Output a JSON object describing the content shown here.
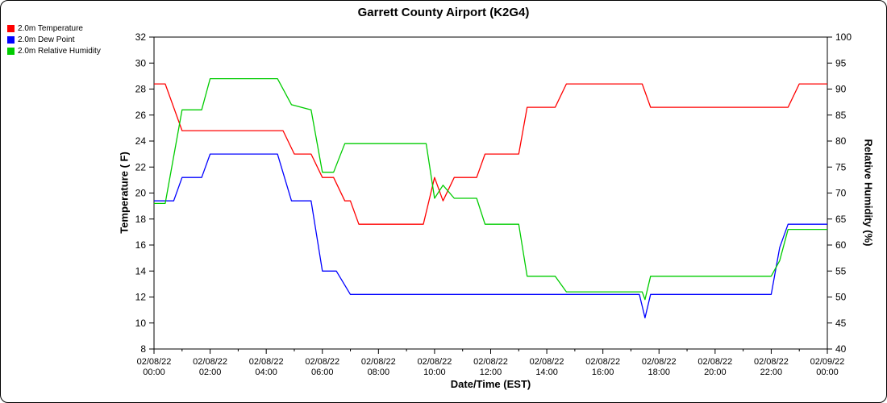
{
  "chart_data": {
    "type": "line",
    "title": "Garrett County Airport (K2G4)",
    "xlabel": "Date/Time (EST)",
    "ylabel_left": "Temperature ( F)",
    "ylabel_right": "Relative Humidity (%)",
    "xlim": [
      0,
      24
    ],
    "x_unit": "hours since 02/08/22 00:00 EST",
    "ylim_left": [
      8,
      32
    ],
    "ytick_step_left": 2,
    "ylim_right": [
      40,
      100
    ],
    "ytick_step_right": 5,
    "grid": false,
    "legend_position": "top-left",
    "axis_color": "#000000",
    "x_ticks": [
      {
        "pos": 0,
        "date": "02/08/22",
        "time": "00:00"
      },
      {
        "pos": 2,
        "date": "02/08/22",
        "time": "02:00"
      },
      {
        "pos": 4,
        "date": "02/08/22",
        "time": "04:00"
      },
      {
        "pos": 6,
        "date": "02/08/22",
        "time": "06:00"
      },
      {
        "pos": 8,
        "date": "02/08/22",
        "time": "08:00"
      },
      {
        "pos": 10,
        "date": "02/08/22",
        "time": "10:00"
      },
      {
        "pos": 12,
        "date": "02/08/22",
        "time": "12:00"
      },
      {
        "pos": 14,
        "date": "02/08/22",
        "time": "14:00"
      },
      {
        "pos": 16,
        "date": "02/08/22",
        "time": "16:00"
      },
      {
        "pos": 18,
        "date": "02/08/22",
        "time": "18:00"
      },
      {
        "pos": 20,
        "date": "02/08/22",
        "time": "20:00"
      },
      {
        "pos": 22,
        "date": "02/08/22",
        "time": "22:00"
      },
      {
        "pos": 24,
        "date": "02/09/22",
        "time": "00:00"
      }
    ],
    "series": [
      {
        "name": "2.0m Temperature",
        "color": "#ff0000",
        "axis": "left",
        "points": [
          [
            0,
            28.4
          ],
          [
            0.4,
            28.4
          ],
          [
            1,
            24.8
          ],
          [
            4.6,
            24.8
          ],
          [
            5,
            23
          ],
          [
            5.6,
            23
          ],
          [
            6,
            21.2
          ],
          [
            6.4,
            21.2
          ],
          [
            6.8,
            19.4
          ],
          [
            7,
            19.4
          ],
          [
            7.3,
            17.6
          ],
          [
            9.6,
            17.6
          ],
          [
            10,
            21.2
          ],
          [
            10.3,
            19.4
          ],
          [
            10.7,
            21.2
          ],
          [
            11.5,
            21.2
          ],
          [
            11.8,
            23
          ],
          [
            13,
            23
          ],
          [
            13.3,
            26.6
          ],
          [
            14.3,
            26.6
          ],
          [
            14.7,
            28.4
          ],
          [
            17.4,
            28.4
          ],
          [
            17.7,
            26.6
          ],
          [
            22.6,
            26.6
          ],
          [
            23,
            28.4
          ],
          [
            24,
            28.4
          ]
        ]
      },
      {
        "name": "2.0m Dew Point",
        "color": "#0000ff",
        "axis": "left",
        "points": [
          [
            0,
            19.4
          ],
          [
            0.7,
            19.4
          ],
          [
            1,
            21.2
          ],
          [
            1.7,
            21.2
          ],
          [
            2,
            23
          ],
          [
            4.4,
            23
          ],
          [
            4.9,
            19.4
          ],
          [
            5.6,
            19.4
          ],
          [
            6,
            14
          ],
          [
            6.5,
            14
          ],
          [
            7,
            12.2
          ],
          [
            17.3,
            12.2
          ],
          [
            17.5,
            10.4
          ],
          [
            17.7,
            12.2
          ],
          [
            22,
            12.2
          ],
          [
            22.3,
            15.8
          ],
          [
            22.6,
            17.6
          ],
          [
            24,
            17.6
          ]
        ]
      },
      {
        "name": "2.0m Relative Humidity",
        "color": "#00cc00",
        "axis": "right",
        "points": [
          [
            0,
            68
          ],
          [
            0.4,
            68
          ],
          [
            1,
            86
          ],
          [
            1.7,
            86
          ],
          [
            2,
            92
          ],
          [
            4.4,
            92
          ],
          [
            4.9,
            87
          ],
          [
            5.6,
            86
          ],
          [
            6,
            74
          ],
          [
            6.4,
            74
          ],
          [
            6.8,
            79.5
          ],
          [
            9.7,
            79.5
          ],
          [
            10,
            69
          ],
          [
            10.3,
            71.5
          ],
          [
            10.7,
            69
          ],
          [
            11.5,
            69
          ],
          [
            11.8,
            64
          ],
          [
            13,
            64
          ],
          [
            13.3,
            54
          ],
          [
            14.3,
            54
          ],
          [
            14.7,
            51
          ],
          [
            17.4,
            51
          ],
          [
            17.5,
            49.5
          ],
          [
            17.7,
            54
          ],
          [
            22,
            54
          ],
          [
            22.3,
            57
          ],
          [
            22.6,
            63
          ],
          [
            24,
            63
          ]
        ]
      }
    ]
  }
}
